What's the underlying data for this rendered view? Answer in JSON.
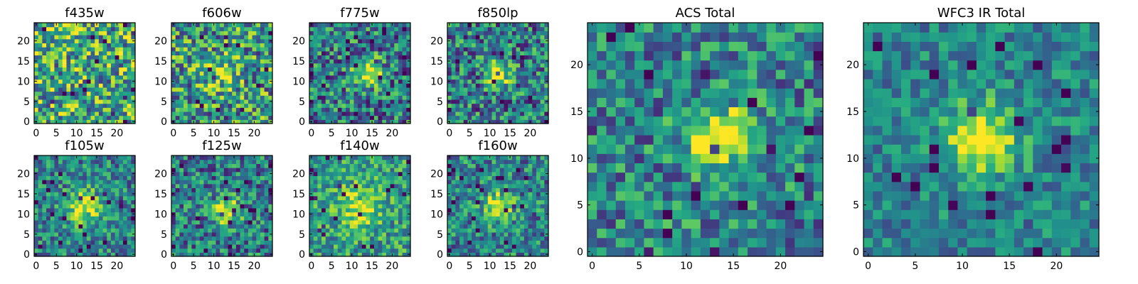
{
  "figure": {
    "colormap": "viridis",
    "colors": {
      "low": "#440154",
      "mid": "#21918c",
      "high": "#fde725"
    }
  },
  "chart_data": [
    {
      "type": "heatmap",
      "title": "f435w",
      "grid_size": 25,
      "xticks": [
        "0",
        "5",
        "10",
        "15",
        "20"
      ],
      "yticks": [
        "0",
        "5",
        "10",
        "15",
        "20"
      ],
      "xlim": [
        -0.5,
        24.5
      ],
      "ylim": [
        -0.5,
        24.5
      ],
      "seed": 11,
      "noise": 0.42,
      "bias": 0.62,
      "blobs": []
    },
    {
      "type": "heatmap",
      "title": "f606w",
      "grid_size": 25,
      "xticks": [
        "0",
        "5",
        "10",
        "15",
        "20"
      ],
      "yticks": [
        "0",
        "5",
        "10",
        "15",
        "20"
      ],
      "xlim": [
        -0.5,
        24.5
      ],
      "ylim": [
        -0.5,
        24.5
      ],
      "seed": 23,
      "noise": 0.4,
      "bias": 0.55,
      "blobs": [
        {
          "x": 12,
          "y": 12,
          "sigma": 3,
          "amp": 0.25
        }
      ]
    },
    {
      "type": "heatmap",
      "title": "f775w",
      "grid_size": 25,
      "xticks": [
        "0",
        "5",
        "10",
        "15",
        "20"
      ],
      "yticks": [
        "0",
        "5",
        "10",
        "15",
        "20"
      ],
      "xlim": [
        -0.5,
        24.5
      ],
      "ylim": [
        -0.5,
        24.5
      ],
      "seed": 37,
      "noise": 0.36,
      "bias": 0.42,
      "blobs": [
        {
          "x": 14,
          "y": 12,
          "sigma": 2.5,
          "amp": 0.55
        }
      ]
    },
    {
      "type": "heatmap",
      "title": "f850lp",
      "grid_size": 25,
      "xticks": [
        "0",
        "5",
        "10",
        "15",
        "20"
      ],
      "yticks": [
        "0",
        "5",
        "10",
        "15",
        "20"
      ],
      "xlim": [
        -0.5,
        24.5
      ],
      "ylim": [
        -0.5,
        24.5
      ],
      "seed": 41,
      "noise": 0.36,
      "bias": 0.42,
      "blobs": [
        {
          "x": 12,
          "y": 12,
          "sigma": 2,
          "amp": 0.65
        }
      ]
    },
    {
      "type": "heatmap",
      "title": "f105w",
      "grid_size": 25,
      "xticks": [
        "0",
        "5",
        "10",
        "15",
        "20"
      ],
      "yticks": [
        "0",
        "5",
        "10",
        "15",
        "20"
      ],
      "xlim": [
        -0.5,
        24.5
      ],
      "ylim": [
        -0.5,
        24.5
      ],
      "seed": 53,
      "noise": 0.28,
      "bias": 0.45,
      "blobs": [
        {
          "x": 12,
          "y": 12,
          "sigma": 3,
          "amp": 0.55
        }
      ]
    },
    {
      "type": "heatmap",
      "title": "f125w",
      "grid_size": 25,
      "xticks": [
        "0",
        "5",
        "10",
        "15",
        "20"
      ],
      "yticks": [
        "0",
        "5",
        "10",
        "15",
        "20"
      ],
      "xlim": [
        -0.5,
        24.5
      ],
      "ylim": [
        -0.5,
        24.5
      ],
      "seed": 67,
      "noise": 0.32,
      "bias": 0.42,
      "blobs": [
        {
          "x": 13,
          "y": 11,
          "sigma": 2.5,
          "amp": 0.55
        }
      ]
    },
    {
      "type": "heatmap",
      "title": "f140w",
      "grid_size": 25,
      "xticks": [
        "0",
        "5",
        "10",
        "15",
        "20"
      ],
      "yticks": [
        "0",
        "5",
        "10",
        "15",
        "20"
      ],
      "xlim": [
        -0.5,
        24.5
      ],
      "ylim": [
        -0.5,
        24.5
      ],
      "seed": 79,
      "noise": 0.28,
      "bias": 0.55,
      "blobs": [
        {
          "x": 12,
          "y": 12,
          "sigma": 3.5,
          "amp": 0.4
        }
      ]
    },
    {
      "type": "heatmap",
      "title": "f160w",
      "grid_size": 25,
      "xticks": [
        "0",
        "5",
        "10",
        "15",
        "20"
      ],
      "yticks": [
        "0",
        "5",
        "10",
        "15",
        "20"
      ],
      "xlim": [
        -0.5,
        24.5
      ],
      "ylim": [
        -0.5,
        24.5
      ],
      "seed": 83,
      "noise": 0.3,
      "bias": 0.45,
      "blobs": [
        {
          "x": 12,
          "y": 12,
          "sigma": 2.5,
          "amp": 0.55
        }
      ]
    },
    {
      "type": "heatmap",
      "title": "ACS Total",
      "grid_size": 25,
      "xticks": [
        "0",
        "5",
        "10",
        "15",
        "20"
      ],
      "yticks": [
        "0",
        "5",
        "10",
        "15",
        "20"
      ],
      "xlim": [
        -0.5,
        24.5
      ],
      "ylim": [
        -0.5,
        24.5
      ],
      "seed": 97,
      "noise": 0.3,
      "bias": 0.45,
      "blobs": [
        {
          "x": 13,
          "y": 12,
          "sigma": 2.2,
          "amp": 0.6
        },
        {
          "x": 15,
          "y": 13,
          "sigma": 1.6,
          "amp": 0.3
        }
      ]
    },
    {
      "type": "heatmap",
      "title": "WFC3 IR Total",
      "grid_size": 25,
      "xticks": [
        "0",
        "5",
        "10",
        "15",
        "20"
      ],
      "yticks": [
        "0",
        "5",
        "10",
        "15",
        "20"
      ],
      "xlim": [
        -0.5,
        24.5
      ],
      "ylim": [
        -0.5,
        24.5
      ],
      "seed": 101,
      "noise": 0.22,
      "bias": 0.45,
      "blobs": [
        {
          "x": 12,
          "y": 12,
          "sigma": 2.6,
          "amp": 0.6
        }
      ]
    }
  ]
}
